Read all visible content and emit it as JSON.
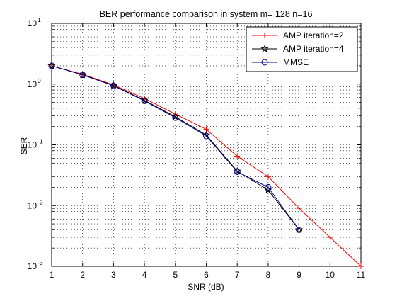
{
  "chart_data": {
    "type": "line",
    "title": "BER performance comparison in system m= 128  n=16",
    "xlabel": "SNR (dB)",
    "ylabel": "SER",
    "xscale": "linear",
    "yscale": "log",
    "xlim": [
      1,
      11
    ],
    "ylim": [
      0.001,
      10
    ],
    "xticks": [
      "1",
      "2",
      "3",
      "4",
      "5",
      "6",
      "7",
      "8",
      "9",
      "10",
      "11"
    ],
    "yticks": [
      {
        "base": "10",
        "exp": "-3"
      },
      {
        "base": "10",
        "exp": "-2"
      },
      {
        "base": "10",
        "exp": "-1"
      },
      {
        "base": "10",
        "exp": "0"
      },
      {
        "base": "10",
        "exp": "1"
      }
    ],
    "grid": true,
    "legend_position": "top-right",
    "series": [
      {
        "name": "AMP iteration=2",
        "color": "#ff0000",
        "marker": "plus",
        "x": [
          1,
          2,
          3,
          4,
          5,
          6,
          7,
          8,
          9,
          10,
          11
        ],
        "y": [
          2.0,
          1.45,
          0.97,
          0.58,
          0.32,
          0.18,
          0.065,
          0.03,
          0.009,
          0.003,
          0.001
        ]
      },
      {
        "name": "AMP iteration=4",
        "color": "#000000",
        "marker": "star",
        "x": [
          1,
          2,
          3,
          4,
          5,
          6,
          7,
          8,
          9
        ],
        "y": [
          2.0,
          1.42,
          0.95,
          0.54,
          0.29,
          0.145,
          0.037,
          0.018,
          0.004
        ]
      },
      {
        "name": "MMSE",
        "color": "#00008b",
        "marker": "circle",
        "x": [
          1,
          2,
          3,
          4,
          5,
          6,
          7,
          8,
          9
        ],
        "y": [
          2.0,
          1.42,
          0.94,
          0.53,
          0.28,
          0.14,
          0.036,
          0.02,
          0.004
        ]
      }
    ]
  }
}
